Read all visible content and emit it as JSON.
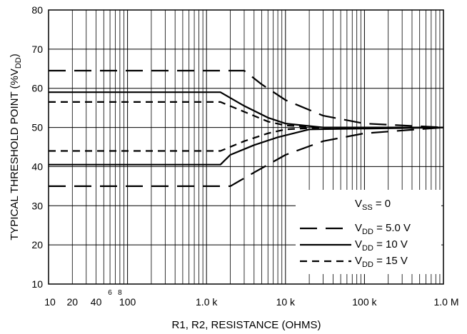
{
  "chart_data": {
    "type": "line",
    "xlabel": "R1, R2, RESISTANCE (OHMS)",
    "ylabel": "TYPICAL THRESHOLD POINT (%VDD)",
    "xscale": "log",
    "xlim": [
      10,
      1000000
    ],
    "ylim": [
      10,
      80
    ],
    "grid": true,
    "x_tick_labels": [
      "10",
      "20",
      "40",
      "100",
      "1.0 k",
      "10 k",
      "100 k",
      "1.0 M"
    ],
    "x_tick_values": [
      10,
      20,
      40,
      100,
      1000,
      10000,
      100000,
      1000000
    ],
    "x_minor_labels": [
      "6",
      "8"
    ],
    "x_minor_values": [
      60,
      80
    ],
    "y_tick_labels": [
      "10",
      "20",
      "30",
      "40",
      "50",
      "60",
      "70",
      "80"
    ],
    "y_tick_values": [
      10,
      20,
      30,
      40,
      50,
      60,
      70,
      80
    ],
    "legend_position": "bottom-right",
    "legend_header": "VSS = 0",
    "series": [
      {
        "name": "VDD = 5.0 V",
        "style": "long-dash",
        "group": "upper",
        "x": [
          10,
          1000,
          3000,
          5000,
          10000,
          30000,
          100000,
          1000000
        ],
        "y": [
          64.5,
          64.5,
          64.5,
          61,
          57,
          53,
          51,
          50
        ]
      },
      {
        "name": "VDD = 5.0 V",
        "style": "long-dash",
        "group": "lower",
        "x": [
          10,
          1000,
          2000,
          4000,
          10000,
          30000,
          100000,
          1000000
        ],
        "y": [
          35,
          35,
          35,
          38.5,
          43,
          46.5,
          48.5,
          50
        ]
      },
      {
        "name": "VDD = 10 V",
        "style": "solid",
        "group": "upper",
        "x": [
          10,
          1000,
          1500,
          3000,
          6000,
          10000,
          30000,
          1000000
        ],
        "y": [
          59,
          59,
          59,
          55.5,
          52.5,
          51,
          50,
          50
        ]
      },
      {
        "name": "VDD = 10 V",
        "style": "solid",
        "group": "lower",
        "x": [
          10,
          1000,
          1500,
          2000,
          4000,
          8000,
          20000,
          1000000
        ],
        "y": [
          40.5,
          40.5,
          40.5,
          43,
          45.5,
          47.5,
          49.5,
          50
        ]
      },
      {
        "name": "VDD = 15 V",
        "style": "short-dash",
        "group": "upper",
        "x": [
          10,
          1000,
          1500,
          3000,
          6000,
          10000,
          30000,
          1000000
        ],
        "y": [
          56.5,
          56.5,
          56.5,
          54,
          51.5,
          50.5,
          50,
          50
        ]
      },
      {
        "name": "VDD = 15 V",
        "style": "short-dash",
        "group": "lower",
        "x": [
          10,
          1000,
          1500,
          3000,
          6000,
          10000,
          30000,
          1000000
        ],
        "y": [
          44,
          44,
          44,
          46.5,
          48.5,
          49.5,
          50,
          50
        ]
      }
    ],
    "legend": [
      {
        "prefix": "V",
        "sub": "DD",
        "suffix": " = 5.0 V",
        "style": "long-dash"
      },
      {
        "prefix": "V",
        "sub": "DD",
        "suffix": " = 10 V",
        "style": "solid"
      },
      {
        "prefix": "V",
        "sub": "DD",
        "suffix": " = 15 V",
        "style": "short-dash"
      }
    ],
    "legend_header_parts": {
      "prefix": "V",
      "sub": "SS",
      "suffix": " = 0"
    },
    "ylabel_parts": {
      "main": "TYPICAL THRESHOLD POINT (%V",
      "sub": "DD",
      "end": ")"
    }
  }
}
